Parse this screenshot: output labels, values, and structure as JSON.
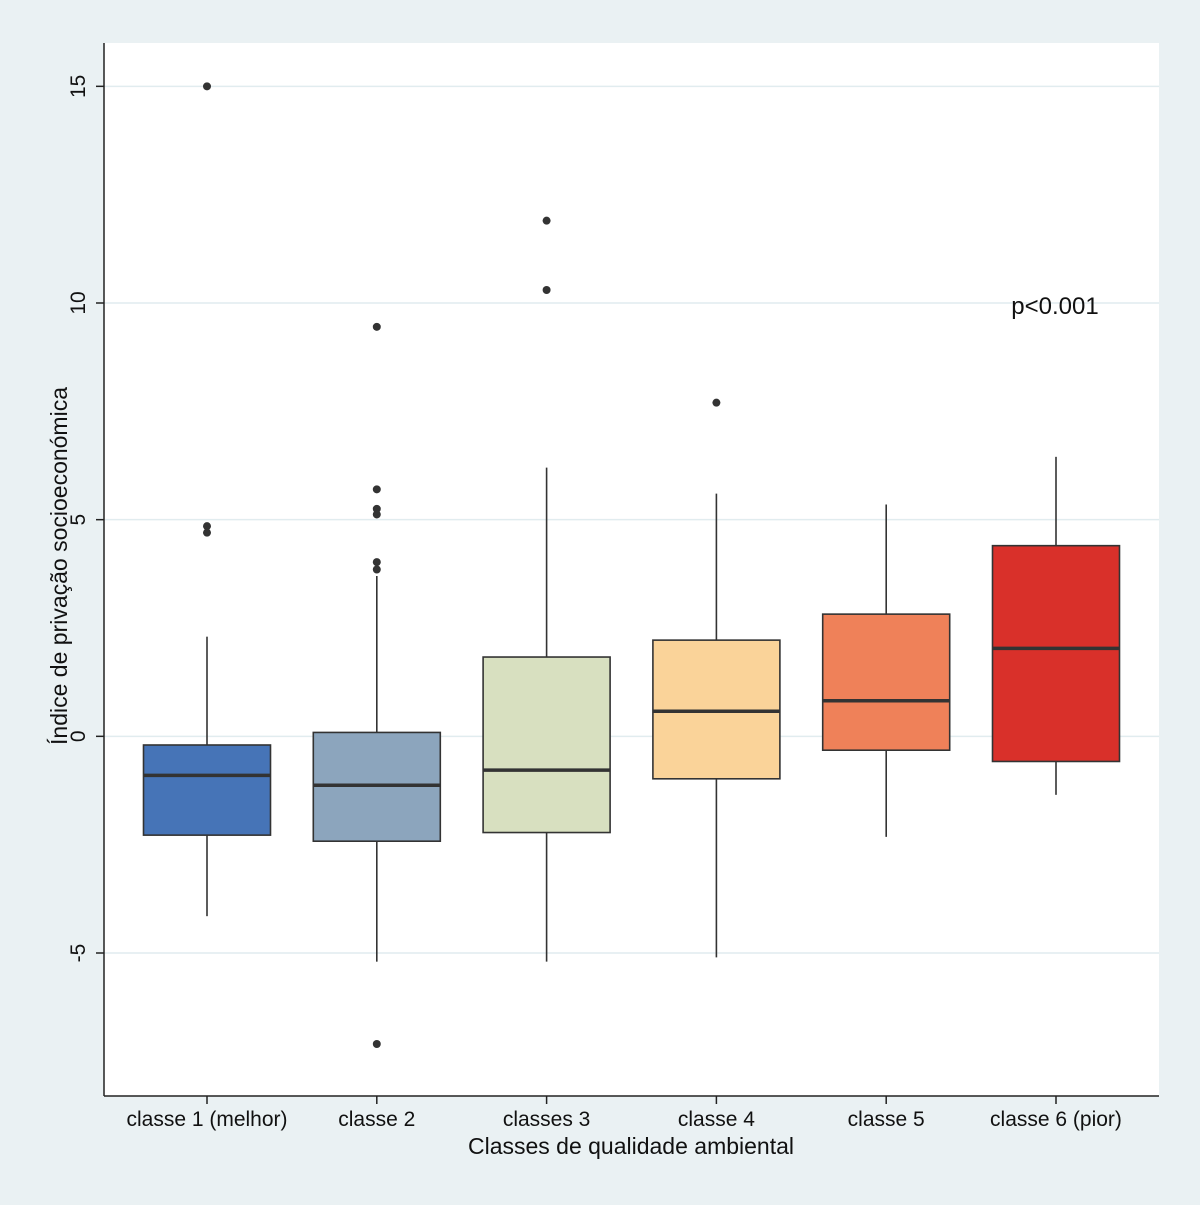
{
  "chart_data": {
    "type": "box",
    "title": "",
    "xlabel": "Classes de qualidade ambiental",
    "ylabel": "Índice de privação socioeconómica",
    "annotation": "p<0.001",
    "ylim": [
      -8.3,
      16.0
    ],
    "yticks": [
      -5,
      0,
      5,
      10,
      15
    ],
    "grid": true,
    "categories": [
      "classe 1 (melhor)",
      "classe 2",
      "classes 3",
      "classe 4",
      "classe 5",
      "classe 6 (pior)"
    ],
    "boxes": [
      {
        "category": "classe 1 (melhor)",
        "whisker_low": -4.15,
        "q1": -2.28,
        "median": -0.9,
        "q3": -0.2,
        "whisker_high": 2.3,
        "outliers": [
          15.0,
          4.85,
          4.7
        ],
        "color": "#4674b7"
      },
      {
        "category": "classe 2",
        "whisker_low": -5.2,
        "q1": -2.42,
        "median": -1.13,
        "q3": 0.09,
        "whisker_high": 3.7,
        "outliers": [
          9.45,
          5.7,
          5.25,
          5.12,
          4.02,
          3.85,
          -7.1
        ],
        "color": "#8ca5bd"
      },
      {
        "category": "classes 3",
        "whisker_low": -5.2,
        "q1": -2.22,
        "median": -0.78,
        "q3": 1.83,
        "whisker_high": 6.2,
        "outliers": [
          11.9,
          10.3
        ],
        "color": "#d8e0c0"
      },
      {
        "category": "classe 4",
        "whisker_low": -5.1,
        "q1": -0.98,
        "median": 0.58,
        "q3": 2.22,
        "whisker_high": 5.6,
        "outliers": [
          7.7
        ],
        "color": "#fad399"
      },
      {
        "category": "classe 5",
        "whisker_low": -2.32,
        "q1": -0.32,
        "median": 0.82,
        "q3": 2.82,
        "whisker_high": 5.35,
        "outliers": [],
        "color": "#ef8159"
      },
      {
        "category": "classe 6 (pior)",
        "whisker_low": -1.35,
        "q1": -0.58,
        "median": 2.03,
        "q3": 4.4,
        "whisker_high": 6.45,
        "outliers": [],
        "color": "#d9302a"
      }
    ],
    "colors": {
      "background": "#eaf1f3",
      "plot_background": "#ffffff",
      "grid": "#e1ecef",
      "box_edge": "#333333",
      "outlier": "#333333"
    }
  }
}
